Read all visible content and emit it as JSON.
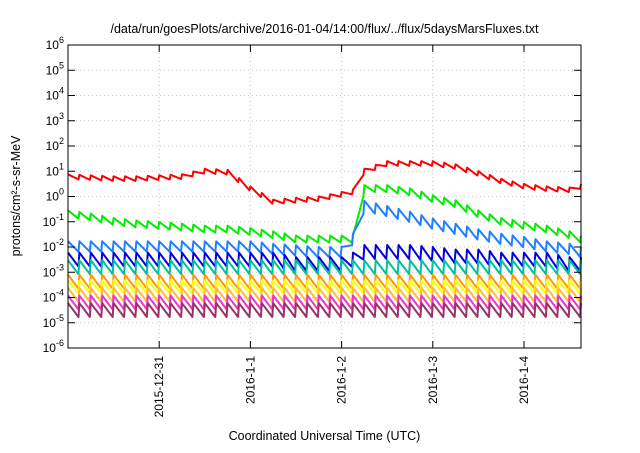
{
  "chart_data": {
    "type": "line",
    "title": "/data/run/goesPlots/archive/2016-01-04/14:00/flux/../flux/5daysMarsFluxes.txt",
    "xlabel": "Coordinated Universal Time (UTC)",
    "ylabel": "protons/cm²-s-sr-MeV",
    "yscale": "log",
    "ylim": [
      1e-06,
      1000000.0
    ],
    "xlim": [
      "2015-12-30T00:00",
      "2016-01-04T15:00"
    ],
    "grid": true,
    "legend": "none",
    "x_ticks": [
      {
        "x": "2015-12-31T00:00",
        "label": "2015-12-31"
      },
      {
        "x": "2016-01-01T00:00",
        "label": "2016-1-1"
      },
      {
        "x": "2016-01-02T00:00",
        "label": "2016-1-2"
      },
      {
        "x": "2016-01-03T00:00",
        "label": "2016-1-3"
      },
      {
        "x": "2016-01-04T00:00",
        "label": "2016-1-4"
      }
    ],
    "y_ticks": [
      {
        "exp": "6"
      },
      {
        "exp": "5"
      },
      {
        "exp": "4"
      },
      {
        "exp": "3"
      },
      {
        "exp": "2"
      },
      {
        "exp": "1"
      },
      {
        "exp": "0"
      },
      {
        "exp": "-1"
      },
      {
        "exp": "-2"
      },
      {
        "exp": "-3"
      },
      {
        "exp": "-4"
      },
      {
        "exp": "-5"
      },
      {
        "exp": "-6"
      }
    ],
    "x": [
      "2015-12-30T00:00",
      "2015-12-30T06:00",
      "2015-12-30T12:00",
      "2015-12-30T18:00",
      "2015-12-31T00:00",
      "2015-12-31T06:00",
      "2015-12-31T12:00",
      "2015-12-31T18:00",
      "2016-01-01T00:00",
      "2016-01-01T06:00",
      "2016-01-01T12:00",
      "2016-01-01T18:00",
      "2016-01-02T00:00",
      "2016-01-02T03:00",
      "2016-01-02T06:00",
      "2016-01-02T12:00",
      "2016-01-02T18:00",
      "2016-01-03T00:00",
      "2016-01-03T06:00",
      "2016-01-03T12:00",
      "2016-01-03T18:00",
      "2016-01-04T00:00",
      "2016-01-04T06:00",
      "2016-01-04T12:00",
      "2016-01-04T15:00"
    ],
    "sawtooth_period_hours": 3,
    "series": [
      {
        "color": "#ff0000",
        "sawtooth_amplitude_decades": 0.2,
        "values": [
          6,
          5.5,
          5,
          5,
          5.5,
          6,
          10,
          9,
          2,
          0.6,
          0.7,
          0.8,
          1.2,
          1.5,
          10,
          20,
          20,
          20,
          15,
          8,
          4,
          2.5,
          2,
          1.8,
          2.5
        ]
      },
      {
        "color": "#00ee00",
        "sawtooth_amplitude_decades": 0.3,
        "values": [
          0.2,
          0.15,
          0.1,
          0.08,
          0.07,
          0.06,
          0.05,
          0.05,
          0.04,
          0.03,
          0.02,
          0.02,
          0.02,
          0.02,
          2,
          2,
          1.5,
          0.8,
          0.5,
          0.2,
          0.1,
          0.07,
          0.05,
          0.03,
          0.02
        ]
      },
      {
        "color": "#1f7fff",
        "sawtooth_amplitude_decades": 0.45,
        "values": [
          0.01,
          0.01,
          0.01,
          0.01,
          0.01,
          0.01,
          0.01,
          0.01,
          0.01,
          0.008,
          0.007,
          0.006,
          0.006,
          0.02,
          0.4,
          0.25,
          0.15,
          0.08,
          0.05,
          0.03,
          0.02,
          0.015,
          0.01,
          0.008,
          0.006
        ]
      },
      {
        "color": "#0000dd",
        "sawtooth_amplitude_decades": 0.6,
        "values": [
          0.003,
          0.003,
          0.003,
          0.003,
          0.003,
          0.003,
          0.003,
          0.003,
          0.003,
          0.003,
          0.002,
          0.002,
          0.002,
          0.003,
          0.006,
          0.006,
          0.006,
          0.005,
          0.004,
          0.004,
          0.003,
          0.003,
          0.003,
          0.002,
          0.002
        ]
      },
      {
        "color": "#00c0a0",
        "sawtooth_amplitude_decades": 0.6,
        "values": [
          0.0015,
          0.0015,
          0.0015,
          0.0015,
          0.0015,
          0.0015,
          0.0015,
          0.0015,
          0.0015,
          0.0015,
          0.0015,
          0.0015,
          0.0015,
          0.0015,
          0.0015,
          0.0015,
          0.0015,
          0.0015,
          0.0015,
          0.0015,
          0.0015,
          0.0015,
          0.0015,
          0.0015,
          0.0015
        ]
      },
      {
        "color": "#ff9900",
        "sawtooth_amplitude_decades": 0.6,
        "values": [
          0.0004,
          0.0004,
          0.0004,
          0.0004,
          0.0004,
          0.0004,
          0.0004,
          0.0004,
          0.0004,
          0.0004,
          0.0004,
          0.0004,
          0.0004,
          0.0004,
          0.0004,
          0.0004,
          0.0004,
          0.0004,
          0.0004,
          0.0004,
          0.0004,
          0.0004,
          0.0004,
          0.0004,
          0.0004
        ]
      },
      {
        "color": "#ffff00",
        "sawtooth_amplitude_decades": 0.55,
        "values": [
          0.00025,
          0.00025,
          0.00025,
          0.00025,
          0.00025,
          0.00025,
          0.00025,
          0.00025,
          0.00025,
          0.00025,
          0.00025,
          0.00025,
          0.00025,
          0.00025,
          0.00025,
          0.00025,
          0.00025,
          0.00025,
          0.00025,
          0.00025,
          0.00025,
          0.00025,
          0.00025,
          0.00025,
          0.00025
        ]
      },
      {
        "color": "#ffbb33",
        "sawtooth_amplitude_decades": 0.6,
        "values": [
          0.00012,
          0.00012,
          0.00012,
          0.00012,
          0.00012,
          0.00012,
          0.00012,
          0.00012,
          0.00012,
          0.00012,
          0.00012,
          0.00012,
          0.00012,
          0.00012,
          0.00012,
          0.00012,
          0.00012,
          0.00012,
          0.00012,
          0.00012,
          0.00012,
          0.00012,
          0.00012,
          0.00012,
          0.00012
        ]
      },
      {
        "color": "#ee33cc",
        "sawtooth_amplitude_decades": 0.6,
        "values": [
          6e-05,
          6e-05,
          6e-05,
          6e-05,
          6e-05,
          6e-05,
          6e-05,
          6e-05,
          6e-05,
          6e-05,
          6e-05,
          6e-05,
          6e-05,
          6e-05,
          6e-05,
          6e-05,
          6e-05,
          6e-05,
          6e-05,
          6e-05,
          6e-05,
          6e-05,
          6e-05,
          6e-05,
          6e-05
        ]
      },
      {
        "color": "#993366",
        "sawtooth_amplitude_decades": 0.6,
        "values": [
          3e-05,
          3e-05,
          3e-05,
          3e-05,
          3e-05,
          3e-05,
          3e-05,
          3e-05,
          3e-05,
          3e-05,
          3e-05,
          3e-05,
          3e-05,
          3e-05,
          3e-05,
          3e-05,
          3e-05,
          3e-05,
          3e-05,
          3e-05,
          3e-05,
          3e-05,
          3e-05,
          3e-05,
          3e-05
        ]
      }
    ]
  }
}
